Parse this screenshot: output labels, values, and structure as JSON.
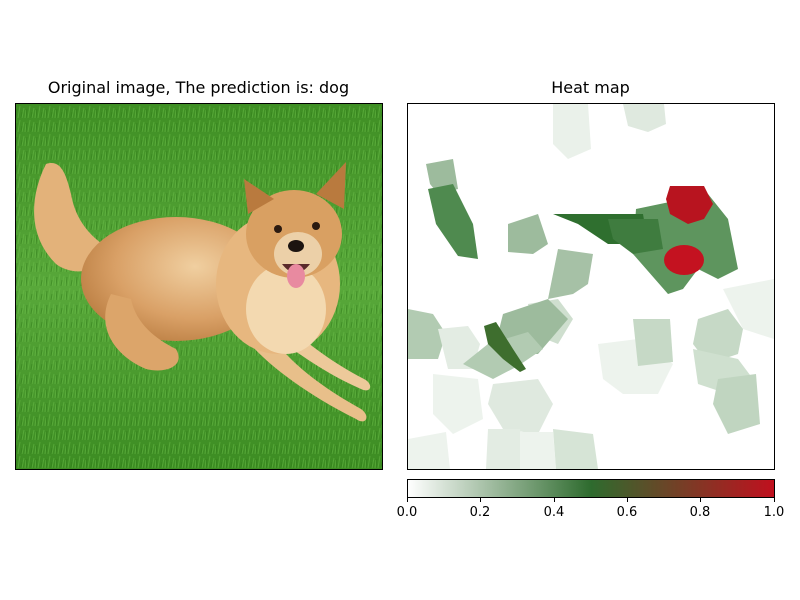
{
  "left_panel": {
    "title": "Original image, The prediction is: dog",
    "image_subject": "dog lying on green grass"
  },
  "right_panel": {
    "title": "Heat map"
  },
  "colorbar": {
    "colors": [
      "#ffffff",
      "#2e6b2e",
      "#c0101e"
    ],
    "ticks": [
      "0.0",
      "0.2",
      "0.4",
      "0.6",
      "0.8",
      "1.0"
    ]
  }
}
